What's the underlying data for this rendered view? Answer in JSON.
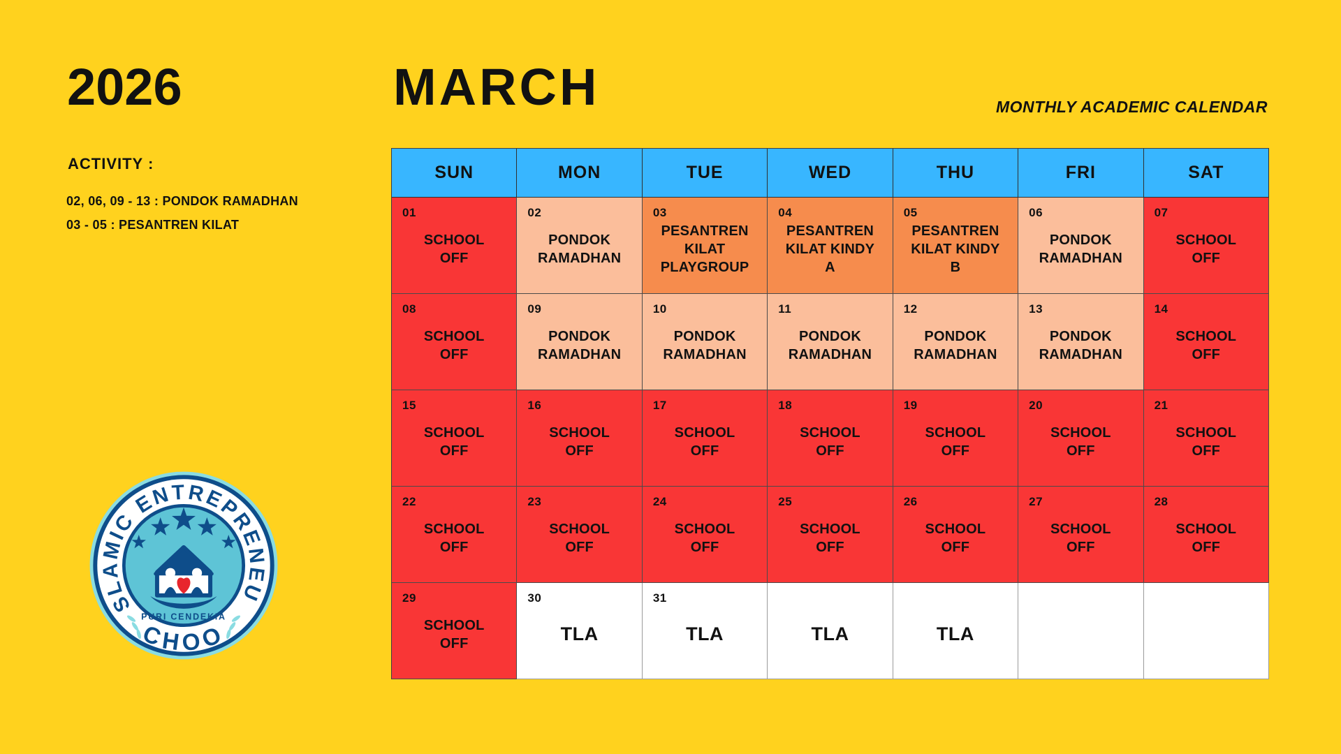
{
  "page": {
    "year": "2026",
    "month": "MARCH",
    "subtitle": "MONTHLY ACADEMIC CALENDAR"
  },
  "activity": {
    "heading": "ACTIVITY :",
    "items": [
      "02, 06, 09 - 13 : PONDOK RAMADHAN",
      "03 - 05 : PESANTREN KILAT"
    ]
  },
  "logo": {
    "arc_top": "ISLAMIC ENTREPRENEUR",
    "arc_bottom": "SCHOOL",
    "banner": "PURI CENDEKIA"
  },
  "colors": {
    "background": "#FFD21E",
    "header_blue": "#38B6FF",
    "school_off_red": "#F93636",
    "pondok_peach": "#FBBE9B",
    "pesantren_orange": "#F68C4D",
    "white": "#FFFFFF",
    "logo_navy": "#0E4D8A",
    "logo_teal": "#5EC4D6",
    "logo_light_teal": "#8ADCE2",
    "heart_red": "#E8262D"
  },
  "calendar": {
    "day_headers": [
      "SUN",
      "MON",
      "TUE",
      "WED",
      "THU",
      "FRI",
      "SAT"
    ],
    "weeks": [
      [
        {
          "date": "01",
          "label": "SCHOOL OFF",
          "type": "school-off"
        },
        {
          "date": "02",
          "label": "PONDOK RAMADHAN",
          "type": "pondok"
        },
        {
          "date": "03",
          "label": "PESANTREN KILAT PLAYGROUP",
          "type": "pesantren"
        },
        {
          "date": "04",
          "label": "PESANTREN KILAT KINDY A",
          "type": "pesantren"
        },
        {
          "date": "05",
          "label": "PESANTREN KILAT KINDY B",
          "type": "pesantren"
        },
        {
          "date": "06",
          "label": "PONDOK RAMADHAN",
          "type": "pondok"
        },
        {
          "date": "07",
          "label": "SCHOOL OFF",
          "type": "school-off"
        }
      ],
      [
        {
          "date": "08",
          "label": "SCHOOL OFF",
          "type": "school-off"
        },
        {
          "date": "09",
          "label": "PONDOK RAMADHAN",
          "type": "pondok"
        },
        {
          "date": "10",
          "label": "PONDOK RAMADHAN",
          "type": "pondok"
        },
        {
          "date": "11",
          "label": "PONDOK RAMADHAN",
          "type": "pondok"
        },
        {
          "date": "12",
          "label": "PONDOK RAMADHAN",
          "type": "pondok"
        },
        {
          "date": "13",
          "label": "PONDOK RAMADHAN",
          "type": "pondok"
        },
        {
          "date": "14",
          "label": "SCHOOL OFF",
          "type": "school-off"
        }
      ],
      [
        {
          "date": "15",
          "label": "SCHOOL OFF",
          "type": "school-off"
        },
        {
          "date": "16",
          "label": "SCHOOL OFF",
          "type": "school-off"
        },
        {
          "date": "17",
          "label": "SCHOOL OFF",
          "type": "school-off"
        },
        {
          "date": "18",
          "label": "SCHOOL OFF",
          "type": "school-off"
        },
        {
          "date": "19",
          "label": "SCHOOL OFF",
          "type": "school-off"
        },
        {
          "date": "20",
          "label": "SCHOOL OFF",
          "type": "school-off"
        },
        {
          "date": "21",
          "label": "SCHOOL OFF",
          "type": "school-off"
        }
      ],
      [
        {
          "date": "22",
          "label": "SCHOOL OFF",
          "type": "school-off"
        },
        {
          "date": "23",
          "label": "SCHOOL OFF",
          "type": "school-off"
        },
        {
          "date": "24",
          "label": "SCHOOL OFF",
          "type": "school-off"
        },
        {
          "date": "25",
          "label": "SCHOOL OFF",
          "type": "school-off"
        },
        {
          "date": "26",
          "label": "SCHOOL OFF",
          "type": "school-off"
        },
        {
          "date": "27",
          "label": "SCHOOL OFF",
          "type": "school-off"
        },
        {
          "date": "28",
          "label": "SCHOOL OFF",
          "type": "school-off"
        }
      ],
      [
        {
          "date": "29",
          "label": "SCHOOL OFF",
          "type": "school-off"
        },
        {
          "date": "30",
          "label": "TLA",
          "type": "tla"
        },
        {
          "date": "31",
          "label": "TLA",
          "type": "tla"
        },
        {
          "date": "",
          "label": "TLA",
          "type": "tla"
        },
        {
          "date": "",
          "label": "TLA",
          "type": "tla"
        },
        {
          "date": "",
          "label": "",
          "type": "empty"
        },
        {
          "date": "",
          "label": "",
          "type": "empty"
        }
      ]
    ]
  }
}
